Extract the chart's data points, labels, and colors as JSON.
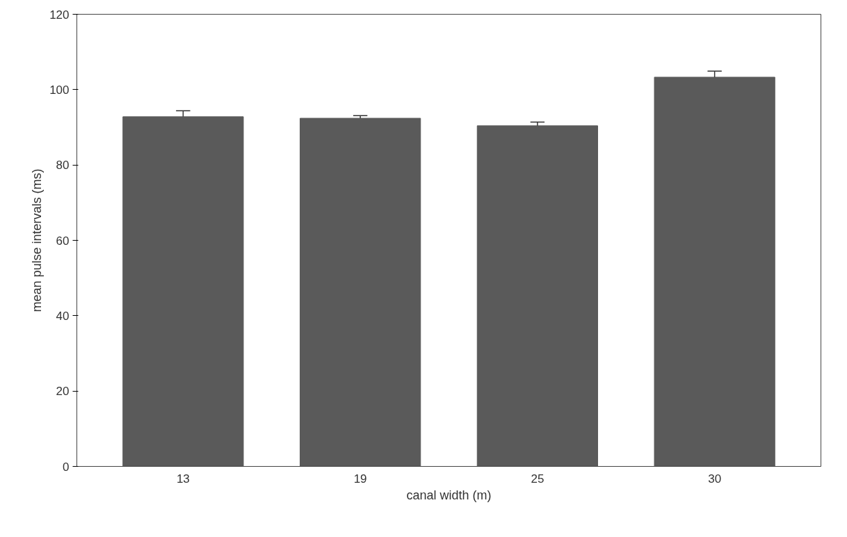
{
  "chart_data": {
    "type": "bar",
    "xlabel": "canal width (m)",
    "ylabel": "mean pulse intervals (ms)",
    "categories": [
      "13",
      "19",
      "25",
      "30"
    ],
    "values": [
      92.8,
      92.4,
      90.4,
      103.3
    ],
    "errors": [
      [
        92.8,
        94.4
      ],
      [
        92.4,
        93.1
      ],
      [
        90.4,
        91.4
      ],
      [
        103.3,
        104.9
      ]
    ],
    "color": "#5a5a5a",
    "ylim": [
      0,
      120
    ],
    "yticks": [
      0,
      20,
      40,
      60,
      80,
      100,
      120
    ],
    "grid": false
  }
}
